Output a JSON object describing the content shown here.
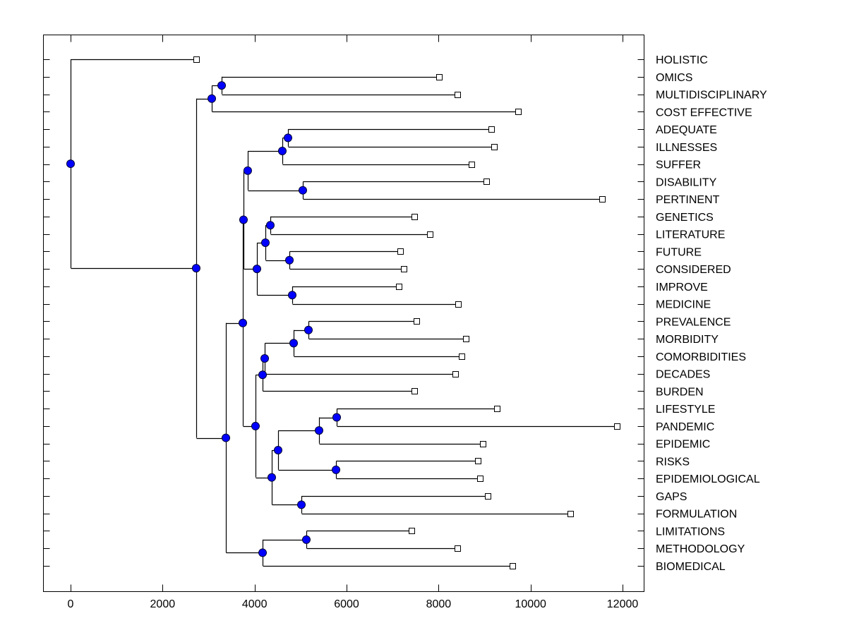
{
  "chart_data": {
    "type": "dendrogram",
    "title": "",
    "xlabel": "",
    "ylabel": "",
    "xlim": [
      -600,
      12450
    ],
    "x_ticks": [
      0,
      2000,
      4000,
      6000,
      8000,
      10000,
      12000
    ],
    "x_tick_labels": [
      "0",
      "2000",
      "4000",
      "6000",
      "8000",
      "10000",
      "12000"
    ],
    "grid": false,
    "legend": "none",
    "colors": {
      "node_fill": "#0000ff",
      "node_stroke": "#000033",
      "line": "#000000",
      "leaf_fill": "#ffffff"
    },
    "leaves": [
      {
        "label": "HOLISTIC",
        "value": 2731
      },
      {
        "label": "OMICS",
        "value": 8010
      },
      {
        "label": "MULTIDISCIPLINARY",
        "value": 8409
      },
      {
        "label": "COST EFFECTIVE",
        "value": 9729
      },
      {
        "label": "ADEQUATE",
        "value": 9145
      },
      {
        "label": "ILLNESSES",
        "value": 9207
      },
      {
        "label": "SUFFER",
        "value": 8716
      },
      {
        "label": "DISABILITY",
        "value": 9038
      },
      {
        "label": "PERTINENT",
        "value": 11554
      },
      {
        "label": "GENETICS",
        "value": 7473
      },
      {
        "label": "LITERATURE",
        "value": 7810
      },
      {
        "label": "FUTURE",
        "value": 7166
      },
      {
        "label": "CONSIDERED",
        "value": 7243
      },
      {
        "label": "IMPROVE",
        "value": 7135
      },
      {
        "label": "MEDICINE",
        "value": 8424
      },
      {
        "label": "PREVALENCE",
        "value": 7519
      },
      {
        "label": "MORBIDITY",
        "value": 8593
      },
      {
        "label": "COMORBIDITIES",
        "value": 8501
      },
      {
        "label": "DECADES",
        "value": 8363
      },
      {
        "label": "BURDEN",
        "value": 7473
      },
      {
        "label": "LIFESTYLE",
        "value": 9268
      },
      {
        "label": "PANDEMIC",
        "value": 11877
      },
      {
        "label": "EPIDEMIC",
        "value": 8961
      },
      {
        "label": "RISKS",
        "value": 8854
      },
      {
        "label": "EPIDEMIOLOGICAL",
        "value": 8900
      },
      {
        "label": "GAPS",
        "value": 9069
      },
      {
        "label": "FORMULATION",
        "value": 10864
      },
      {
        "label": "LIMITATIONS",
        "value": 7411
      },
      {
        "label": "METHODOLOGY",
        "value": 8409
      },
      {
        "label": "BIOMEDICAL",
        "value": 9606
      }
    ],
    "nodes": [
      {
        "id": "n_omics_multi",
        "value": 3284,
        "children": [
          "L1",
          "L2"
        ]
      },
      {
        "id": "n_omics_cost",
        "value": 3069,
        "children": [
          "n_omics_multi",
          "L3"
        ]
      },
      {
        "id": "n_adeq_ill",
        "value": 4726,
        "children": [
          "L4",
          "L5"
        ]
      },
      {
        "id": "n_adeq_suffer",
        "value": 4603,
        "children": [
          "n_adeq_ill",
          "L6"
        ]
      },
      {
        "id": "n_dis_pert",
        "value": 5048,
        "children": [
          "L7",
          "L8"
        ]
      },
      {
        "id": "n_adeq_pert",
        "value": 3851,
        "children": [
          "n_adeq_suffer",
          "n_dis_pert"
        ]
      },
      {
        "id": "n_gen_lit",
        "value": 4342,
        "children": [
          "L9",
          "L10"
        ]
      },
      {
        "id": "n_fut_cons",
        "value": 4757,
        "children": [
          "L11",
          "L12"
        ]
      },
      {
        "id": "n_gen_cons",
        "value": 4235,
        "children": [
          "n_gen_lit",
          "n_fut_cons"
        ]
      },
      {
        "id": "n_imp_med",
        "value": 4818,
        "children": [
          "L13",
          "L14"
        ]
      },
      {
        "id": "n_gen_med",
        "value": 4051,
        "children": [
          "n_gen_cons",
          "n_imp_med"
        ]
      },
      {
        "id": "n_upper",
        "value": 3759,
        "children": [
          "n_adeq_pert",
          "n_gen_med"
        ]
      },
      {
        "id": "n_prev_morb",
        "value": 5171,
        "children": [
          "L15",
          "L16"
        ]
      },
      {
        "id": "n_prev_comorb",
        "value": 4849,
        "children": [
          "n_prev_morb",
          "L17"
        ]
      },
      {
        "id": "n_prev_dec",
        "value": 4220,
        "children": [
          "n_prev_comorb",
          "L18"
        ]
      },
      {
        "id": "n_prev_burden",
        "value": 4174,
        "children": [
          "n_prev_dec",
          "L19"
        ]
      },
      {
        "id": "n_life_pand",
        "value": 5785,
        "children": [
          "L20",
          "L21"
        ]
      },
      {
        "id": "n_life_epid",
        "value": 5401,
        "children": [
          "n_life_pand",
          "L22"
        ]
      },
      {
        "id": "n_risk_epi",
        "value": 5770,
        "children": [
          "L23",
          "L24"
        ]
      },
      {
        "id": "n_life_epi",
        "value": 4511,
        "children": [
          "n_life_epid",
          "n_risk_epi"
        ]
      },
      {
        "id": "n_gaps_form",
        "value": 5018,
        "children": [
          "L25",
          "L26"
        ]
      },
      {
        "id": "n_life_form",
        "value": 4373,
        "children": [
          "n_life_epi",
          "n_gaps_form"
        ]
      },
      {
        "id": "n_prev_form",
        "value": 4020,
        "children": [
          "n_prev_burden",
          "n_life_form"
        ]
      },
      {
        "id": "n_mid",
        "value": 3744,
        "children": [
          "n_upper",
          "n_prev_form"
        ]
      },
      {
        "id": "n_lim_meth",
        "value": 5125,
        "children": [
          "L27",
          "L28"
        ]
      },
      {
        "id": "n_lim_bio",
        "value": 4174,
        "children": [
          "n_lim_meth",
          "L29"
        ]
      },
      {
        "id": "n_mid_bio",
        "value": 3376,
        "children": [
          "n_mid",
          "n_lim_bio"
        ]
      },
      {
        "id": "n_main",
        "value": 2731,
        "children": [
          "n_omics_cost",
          "n_mid_bio"
        ]
      },
      {
        "id": "n_root",
        "value": 0,
        "children": [
          "L0",
          "n_main"
        ]
      }
    ]
  }
}
